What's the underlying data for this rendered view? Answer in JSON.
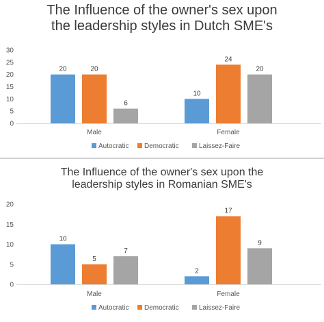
{
  "chart_data": [
    {
      "type": "bar",
      "title_lines": [
        "The Influence of the owner's sex upon",
        "the leadership styles in Dutch SME's"
      ],
      "categories": [
        "Male",
        "Female"
      ],
      "series": [
        {
          "name": "Autocratic",
          "values": [
            20,
            10
          ],
          "color": "#5b9bd5"
        },
        {
          "name": "Democratic",
          "values": [
            20,
            24
          ],
          "color": "#ed7d31"
        },
        {
          "name": "Laissez-Faire",
          "values": [
            6,
            20
          ],
          "color": "#a5a5a5"
        }
      ],
      "ylim": [
        0,
        30
      ],
      "yticks": [
        0,
        5,
        10,
        15,
        20,
        25,
        30
      ],
      "grid": false,
      "legend": "bottom"
    },
    {
      "type": "bar",
      "title_lines": [
        "The Influence of the owner's sex upon the",
        "leadership styles in Romanian SME's"
      ],
      "categories": [
        "Male",
        "Female"
      ],
      "series": [
        {
          "name": "Autocratic",
          "values": [
            10,
            2
          ],
          "color": "#5b9bd5"
        },
        {
          "name": "Democratic",
          "values": [
            5,
            17
          ],
          "color": "#ed7d31"
        },
        {
          "name": "Laissez-Faire",
          "values": [
            7,
            9
          ],
          "color": "#a5a5a5"
        }
      ],
      "ylim": [
        0,
        20
      ],
      "yticks": [
        0,
        5,
        10,
        15,
        20
      ],
      "grid": false,
      "legend": "bottom"
    }
  ]
}
